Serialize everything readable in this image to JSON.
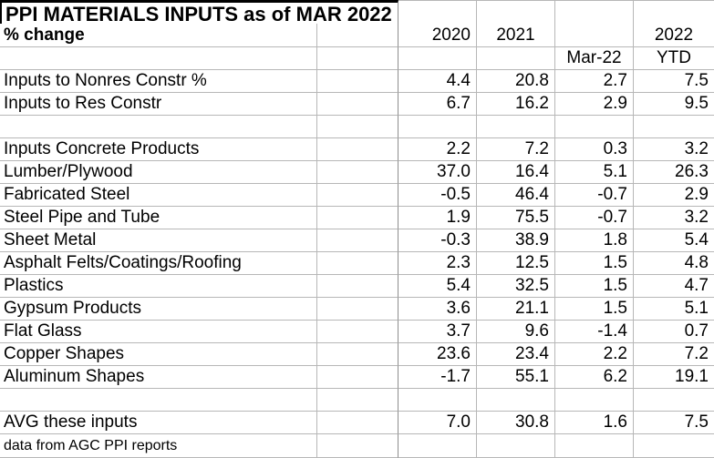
{
  "sheet": {
    "title": "PPI MATERIALS INPUTS as of MAR 2022",
    "footer_note": "data from AGC PPI reports"
  },
  "header": {
    "row_label": "% change",
    "year_2020": "2020",
    "year_2021": "2021",
    "year_2022": "2022",
    "sub_mar": "Mar-22",
    "sub_ytd": "YTD"
  },
  "table": {
    "columns": [
      "2020",
      "2021",
      "Mar-22",
      "2022 YTD"
    ],
    "rows": [
      {
        "label": "Inputs to Nonres Constr %",
        "values": [
          "4.4",
          "20.8",
          "2.7",
          "7.5"
        ]
      },
      {
        "label": "Inputs to Res Constr",
        "values": [
          "6.7",
          "16.2",
          "2.9",
          "9.5"
        ]
      },
      {
        "label": "",
        "values": [
          "",
          "",
          "",
          ""
        ]
      },
      {
        "label": "Inputs Concrete Products",
        "values": [
          "2.2",
          "7.2",
          "0.3",
          "3.2"
        ]
      },
      {
        "label": "Lumber/Plywood",
        "values": [
          "37.0",
          "16.4",
          "5.1",
          "26.3"
        ]
      },
      {
        "label": "Fabricated Steel",
        "values": [
          "-0.5",
          "46.4",
          "-0.7",
          "2.9"
        ]
      },
      {
        "label": "Steel Pipe and Tube",
        "values": [
          "1.9",
          "75.5",
          "-0.7",
          "3.2"
        ]
      },
      {
        "label": "Sheet Metal",
        "values": [
          "-0.3",
          "38.9",
          "1.8",
          "5.4"
        ]
      },
      {
        "label": "Asphalt Felts/Coatings/Roofing",
        "values": [
          "2.3",
          "12.5",
          "1.5",
          "4.8"
        ]
      },
      {
        "label": "Plastics",
        "values": [
          "5.4",
          "32.5",
          "1.5",
          "4.7"
        ]
      },
      {
        "label": "Gypsum Products",
        "values": [
          "3.6",
          "21.1",
          "1.5",
          "5.1"
        ]
      },
      {
        "label": "Flat Glass",
        "values": [
          "3.7",
          "9.6",
          "-1.4",
          "0.7"
        ]
      },
      {
        "label": "Copper Shapes",
        "values": [
          "23.6",
          "23.4",
          "2.2",
          "7.2"
        ]
      },
      {
        "label": "Aluminum Shapes",
        "values": [
          "-1.7",
          "55.1",
          "6.2",
          "19.1"
        ]
      },
      {
        "label": "",
        "values": [
          "",
          "",
          "",
          ""
        ]
      },
      {
        "label": "AVG these inputs",
        "values": [
          "7.0",
          "30.8",
          "1.6",
          "7.5"
        ]
      }
    ]
  },
  "colors": {
    "background": "#ffffff",
    "text": "#000000",
    "grid_line": "#b7b7b7",
    "pane_divider_line": "#8e8e8e",
    "title_border": "#000000"
  }
}
